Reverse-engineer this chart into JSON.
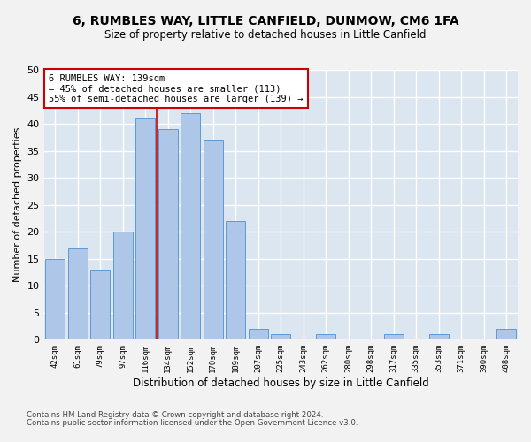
{
  "title": "6, RUMBLES WAY, LITTLE CANFIELD, DUNMOW, CM6 1FA",
  "subtitle": "Size of property relative to detached houses in Little Canfield",
  "xlabel": "Distribution of detached houses by size in Little Canfield",
  "ylabel": "Number of detached properties",
  "bar_labels": [
    "42sqm",
    "61sqm",
    "79sqm",
    "97sqm",
    "116sqm",
    "134sqm",
    "152sqm",
    "170sqm",
    "189sqm",
    "207sqm",
    "225sqm",
    "243sqm",
    "262sqm",
    "280sqm",
    "298sqm",
    "317sqm",
    "335sqm",
    "353sqm",
    "371sqm",
    "390sqm",
    "408sqm"
  ],
  "bar_values": [
    15,
    17,
    13,
    20,
    41,
    39,
    42,
    37,
    22,
    2,
    1,
    0,
    1,
    0,
    0,
    1,
    0,
    1,
    0,
    0,
    2
  ],
  "bar_color": "#aec6e8",
  "bar_edge_color": "#5b9bd5",
  "background_color": "#dce6f1",
  "fig_background_color": "#f2f2f2",
  "grid_color": "#ffffff",
  "ylim": [
    0,
    50
  ],
  "yticks": [
    0,
    5,
    10,
    15,
    20,
    25,
    30,
    35,
    40,
    45,
    50
  ],
  "annotation_text": "6 RUMBLES WAY: 139sqm\n← 45% of detached houses are smaller (113)\n55% of semi-detached houses are larger (139) →",
  "annotation_box_color": "#ffffff",
  "annotation_box_edge": "#cc0000",
  "red_line_x": 4.5,
  "footer_line1": "Contains HM Land Registry data © Crown copyright and database right 2024.",
  "footer_line2": "Contains public sector information licensed under the Open Government Licence v3.0."
}
